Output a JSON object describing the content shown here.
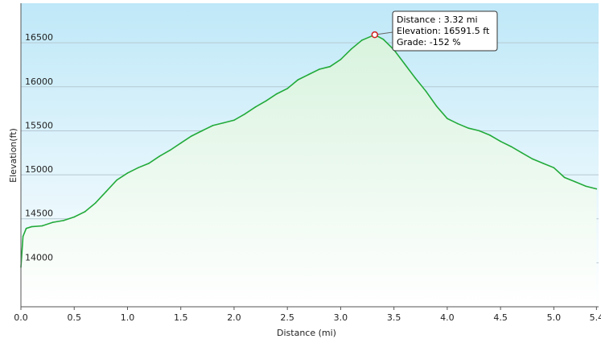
{
  "chart_data": {
    "type": "area",
    "title": "",
    "xlabel": "Distance  (mi)",
    "ylabel": "Elevation(ft)",
    "xlim": [
      0,
      5.42
    ],
    "ylim": [
      13500,
      16950
    ],
    "x_ticks": [
      0.0,
      0.5,
      1.0,
      1.5,
      2.0,
      2.5,
      3.0,
      3.5,
      4.0,
      4.5,
      5.0,
      5.4
    ],
    "x_tick_labels": [
      "0.0",
      "0.5",
      "1.0",
      "1.5",
      "2.0",
      "2.5",
      "3.0",
      "3.5",
      "4.0",
      "4.5",
      "5.0",
      "5.4"
    ],
    "y_ticks": [
      14000,
      14500,
      15000,
      15500,
      16000,
      16500
    ],
    "y_tick_labels": [
      "14000",
      "14500",
      "15000",
      "15500",
      "16000",
      "16500"
    ],
    "grid": true,
    "series": [
      {
        "x": [
          0.0,
          0.02,
          0.05,
          0.1,
          0.2,
          0.3,
          0.4,
          0.5,
          0.6,
          0.7,
          0.8,
          0.9,
          1.0,
          1.1,
          1.2,
          1.3,
          1.4,
          1.5,
          1.6,
          1.7,
          1.8,
          1.9,
          2.0,
          2.1,
          2.2,
          2.3,
          2.4,
          2.5,
          2.6,
          2.7,
          2.8,
          2.9,
          3.0,
          3.1,
          3.2,
          3.32,
          3.4,
          3.5,
          3.6,
          3.7,
          3.8,
          3.9,
          4.0,
          4.1,
          4.2,
          4.3,
          4.4,
          4.5,
          4.6,
          4.7,
          4.8,
          4.9,
          5.0,
          5.1,
          5.2,
          5.3,
          5.4
        ],
        "y": [
          13950,
          14300,
          14390,
          14410,
          14420,
          14460,
          14480,
          14520,
          14580,
          14680,
          14810,
          14940,
          15020,
          15080,
          15130,
          15210,
          15280,
          15360,
          15440,
          15500,
          15560,
          15590,
          15620,
          15690,
          15770,
          15840,
          15920,
          15980,
          16080,
          16140,
          16200,
          16230,
          16310,
          16430,
          16530,
          16591.5,
          16540,
          16420,
          16260,
          16100,
          15950,
          15780,
          15640,
          15580,
          15530,
          15500,
          15450,
          15380,
          15320,
          15250,
          15180,
          15130,
          15080,
          14970,
          14920,
          14870,
          14840
        ]
      }
    ],
    "colors": {
      "line": "#22aa3a",
      "fill_top": "#d8f3de",
      "fill_bottom": "#ffffff",
      "bg_top": "#bfe8f8",
      "bg_bottom": "#ffffff",
      "grid": "#b4c8d2"
    },
    "tooltip": {
      "at_x": 3.32,
      "at_y": 16591.5,
      "line1": "Distance  : 3.32 mi",
      "line2": "Elevation: 16591.5 ft",
      "line3": "Grade: -152 %"
    }
  }
}
